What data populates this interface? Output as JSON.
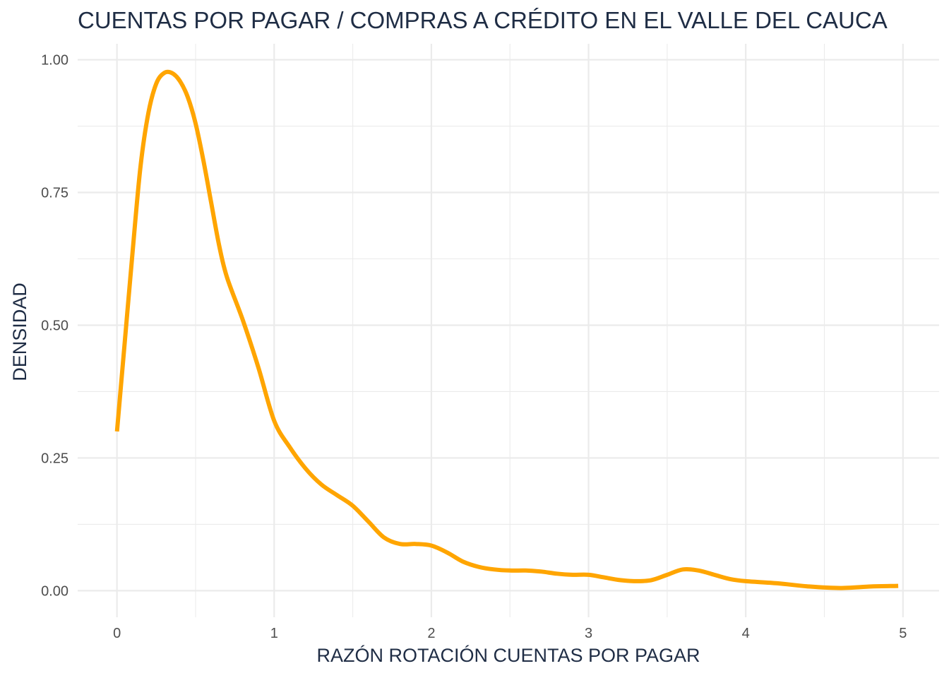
{
  "colors": {
    "line": "#FFA500",
    "text": "#1f2d45",
    "tick": "#4d4d4d",
    "grid": "#ebebeb"
  },
  "chart_data": {
    "type": "line",
    "title": "CUENTAS POR PAGAR / COMPRAS A CRÉDITO EN EL VALLE DEL CAUCA",
    "xlabel": "RAZÓN ROTACIÓN CUENTAS POR PAGAR",
    "ylabel": "DENSIDAD",
    "xlim": [
      -0.25,
      5.23
    ],
    "ylim": [
      -0.05,
      1.03
    ],
    "x_ticks": [
      0,
      1,
      2,
      3,
      4,
      5
    ],
    "x_tick_labels": [
      "0",
      "1",
      "2",
      "3",
      "4",
      "5"
    ],
    "y_ticks": [
      0,
      0.25,
      0.5,
      0.75,
      1.0
    ],
    "y_tick_labels": [
      "0.00",
      "0.25",
      "0.50",
      "0.75",
      "1.00"
    ],
    "grid": true,
    "legend": "none",
    "series": [
      {
        "x": [
          0.0,
          0.05,
          0.1,
          0.15,
          0.2,
          0.25,
          0.3,
          0.35,
          0.4,
          0.45,
          0.5,
          0.55,
          0.6,
          0.65,
          0.7,
          0.8,
          0.9,
          1.0,
          1.1,
          1.2,
          1.3,
          1.4,
          1.5,
          1.6,
          1.7,
          1.8,
          1.9,
          2.0,
          2.1,
          2.2,
          2.3,
          2.4,
          2.5,
          2.6,
          2.7,
          2.8,
          2.9,
          3.0,
          3.1,
          3.2,
          3.3,
          3.4,
          3.5,
          3.6,
          3.7,
          3.8,
          3.9,
          4.0,
          4.2,
          4.4,
          4.6,
          4.8,
          4.97
        ],
        "values": [
          0.3,
          0.47,
          0.64,
          0.8,
          0.9,
          0.955,
          0.975,
          0.975,
          0.96,
          0.93,
          0.88,
          0.81,
          0.73,
          0.65,
          0.59,
          0.51,
          0.42,
          0.32,
          0.27,
          0.23,
          0.2,
          0.18,
          0.16,
          0.13,
          0.1,
          0.088,
          0.088,
          0.085,
          0.072,
          0.055,
          0.045,
          0.04,
          0.038,
          0.038,
          0.036,
          0.032,
          0.03,
          0.03,
          0.025,
          0.02,
          0.018,
          0.02,
          0.03,
          0.04,
          0.038,
          0.03,
          0.022,
          0.018,
          0.014,
          0.008,
          0.005,
          0.008,
          0.009
        ]
      }
    ]
  }
}
